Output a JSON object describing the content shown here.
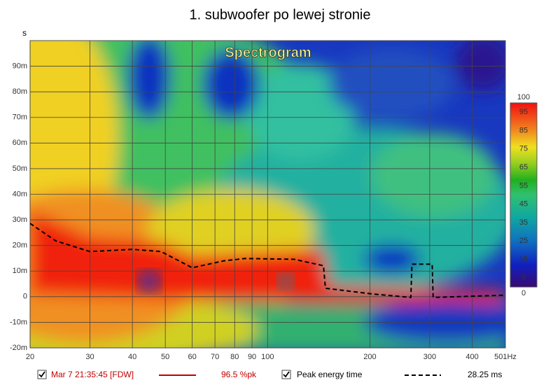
{
  "chart_data": {
    "type": "spectrogram",
    "title": "1. subwoofer po lewej stronie",
    "annotation": "Spectrogram",
    "y_label": "s",
    "xscale": "log",
    "xlim": [
      20,
      501
    ],
    "xticks": [
      20,
      30,
      40,
      50,
      60,
      70,
      80,
      90,
      100,
      200,
      300,
      400,
      {
        "value": 501,
        "label": "501Hz"
      }
    ],
    "ylim": [
      -0.02,
      0.1
    ],
    "yticks": [
      {
        "value": -0.02,
        "label": "-20m"
      },
      {
        "value": -0.01,
        "label": "-10m"
      },
      0,
      {
        "value": 0.01,
        "label": "10m"
      },
      {
        "value": 0.02,
        "label": "20m"
      },
      {
        "value": 0.03,
        "label": "30m"
      },
      {
        "value": 0.04,
        "label": "40m"
      },
      {
        "value": 0.05,
        "label": "50m"
      },
      {
        "value": 0.06,
        "label": "60m"
      },
      {
        "value": 0.07,
        "label": "70m"
      },
      {
        "value": 0.08,
        "label": "80m"
      },
      {
        "value": 0.09,
        "label": "90m"
      }
    ],
    "grid": true,
    "clim": [
      0,
      100
    ],
    "cticks": [
      0,
      5,
      15,
      25,
      35,
      45,
      55,
      65,
      75,
      85,
      95,
      100
    ],
    "measurement": {
      "name": "Mar 7 21:35:45 [FDW]",
      "color": "#c00000",
      "readout": "96.5 %pk"
    },
    "series": [
      {
        "name": "Peak energy time",
        "color": "#000000",
        "dashed": true,
        "readout": "28.25 ms",
        "x": [
          20,
          23.8,
          30,
          40,
          48.6,
          60,
          74.4,
          85.8,
          119.6,
          146,
          148,
          202,
          264,
          266,
          305,
          307,
          501
        ],
        "values": [
          0.0286,
          0.0218,
          0.0176,
          0.0185,
          0.0176,
          0.0113,
          0.014,
          0.0149,
          0.0146,
          0.0121,
          0.0033,
          0.0011,
          -0.0003,
          0.0127,
          0.0127,
          -0.0003,
          0.0006
        ]
      }
    ]
  }
}
